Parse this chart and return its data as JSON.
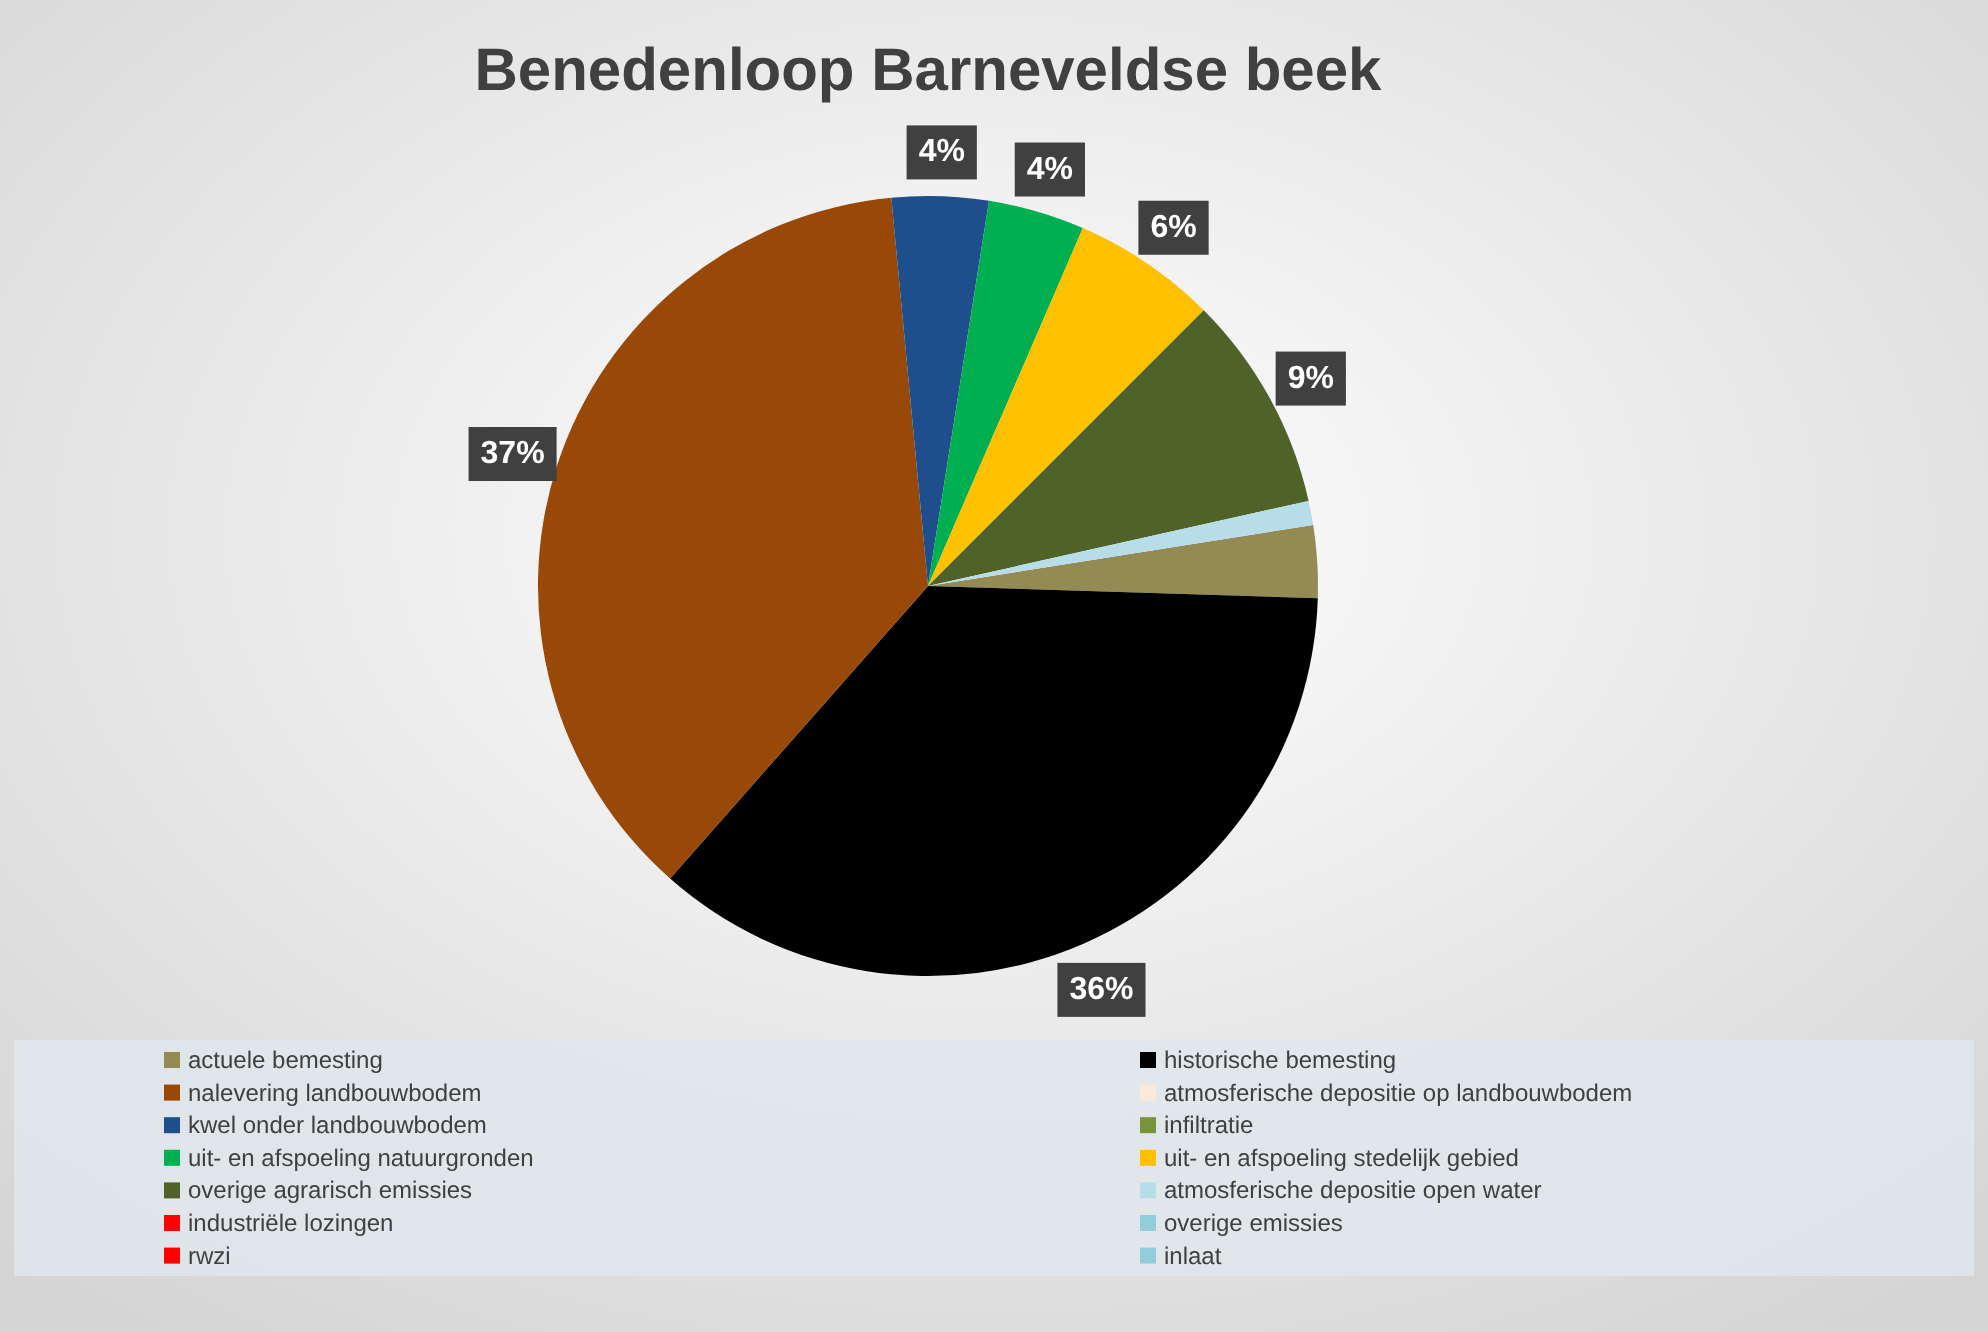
{
  "chart_data": {
    "type": "pie",
    "title": "Benedenloop Barneveldse beek",
    "categories": [
      "actuele bemesting",
      "historische bemesting",
      "nalevering landbouwbodem",
      "atmosferische depositie op landbouwbodem",
      "kwel onder landbouwbodem",
      "infiltratie",
      "uit- en afspoeling natuurgronden",
      "uit- en afspoeling stedelijk gebied",
      "overige agrarisch emissies",
      "atmosferische depositie open water",
      "industriële lozingen",
      "overige emissies",
      "rwzi",
      "inlaat"
    ],
    "values": [
      3,
      36,
      37,
      0,
      4,
      0,
      4,
      6,
      9,
      1,
      0,
      0,
      0,
      0
    ],
    "value_labels": [
      null,
      "36%",
      "37%",
      null,
      "4%",
      null,
      "4%",
      "6%",
      "9%",
      null,
      null,
      null,
      null,
      null
    ],
    "colors": [
      "#948a54",
      "#000000",
      "#984807",
      "#fde9d9",
      "#1f4e8c",
      "#77933c",
      "#00b050",
      "#ffc000",
      "#4f6228",
      "#b7dee8",
      "#ff0000",
      "#92cddc",
      "#ff0000",
      "#92cddc"
    ],
    "legend": "bottom"
  }
}
